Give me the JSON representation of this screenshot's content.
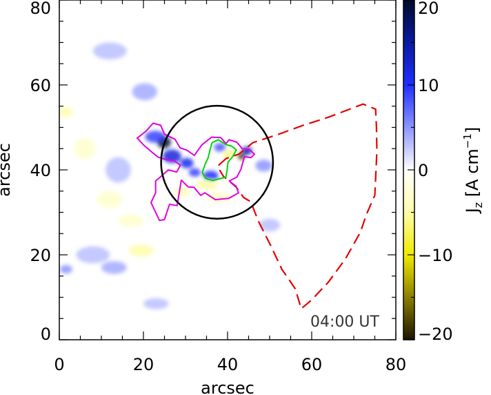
{
  "chart_data": {
    "type": "heatmap",
    "title": "",
    "xlabel": "arcsec",
    "ylabel": "arcsec",
    "xlim": [
      0,
      80
    ],
    "ylim": [
      0,
      80
    ],
    "x_ticks": [
      "0",
      "20",
      "40",
      "60",
      "80"
    ],
    "y_ticks": [
      "0",
      "20",
      "40",
      "60",
      "80"
    ],
    "annotation": "04:00 UT",
    "colorbar": {
      "label_main": "J",
      "label_sub": "z",
      "label_unit": " [A cm",
      "label_exp": "−1",
      "label_close": "]",
      "range": [
        -20,
        20
      ],
      "ticks": [
        "20",
        "10",
        "0",
        "−10",
        "−20"
      ],
      "tick_values": [
        20,
        10,
        0,
        -10,
        -20
      ],
      "colormap": [
        "#000a2a",
        "#0a1aa0",
        "#1f2fff",
        "#8c95ff",
        "#ffffff",
        "#fffda8",
        "#f0ea00",
        "#8c7f00",
        "#1c1400"
      ]
    },
    "circle": {
      "center": [
        37.5,
        41.8
      ],
      "radius": 13.3,
      "color": "#000000"
    },
    "series": [
      {
        "color": "#e000e0",
        "points": [
          [
            20.6,
            49.1
          ],
          [
            22.3,
            51.0
          ],
          [
            24.1,
            50.5
          ],
          [
            25.0,
            48.4
          ],
          [
            27.5,
            47.2
          ],
          [
            28.7,
            45.2
          ],
          [
            30.4,
            44.6
          ],
          [
            32.1,
            43.4
          ],
          [
            33.9,
            45.9
          ],
          [
            36.2,
            47.7
          ],
          [
            38.4,
            47.6
          ],
          [
            39.6,
            46.2
          ],
          [
            40.4,
            47.1
          ],
          [
            42.2,
            46.5
          ],
          [
            43.5,
            45.0
          ],
          [
            45.3,
            44.7
          ],
          [
            46.4,
            43.7
          ],
          [
            45.6,
            42.9
          ],
          [
            44.0,
            43.1
          ],
          [
            43.2,
            40.2
          ],
          [
            42.2,
            38.3
          ],
          [
            40.4,
            37.4
          ],
          [
            42.0,
            36.2
          ],
          [
            42.6,
            34.6
          ],
          [
            40.3,
            33.3
          ],
          [
            37.1,
            33.0
          ],
          [
            34.6,
            34.6
          ],
          [
            33.6,
            34.0
          ],
          [
            32.0,
            35.9
          ],
          [
            30.6,
            36.0
          ],
          [
            29.0,
            37.6
          ],
          [
            28.5,
            34.6
          ],
          [
            28.0,
            31.6
          ],
          [
            26.2,
            31.9
          ],
          [
            25.0,
            28.3
          ],
          [
            23.8,
            28.1
          ],
          [
            22.9,
            30.0
          ],
          [
            21.8,
            32.3
          ],
          [
            22.9,
            34.6
          ],
          [
            22.9,
            37.4
          ],
          [
            24.0,
            38.3
          ],
          [
            25.9,
            40.0
          ],
          [
            27.9,
            39.5
          ],
          [
            28.8,
            41.1
          ],
          [
            27.2,
            42.2
          ],
          [
            25.4,
            42.4
          ],
          [
            23.5,
            43.0
          ],
          [
            21.6,
            44.5
          ],
          [
            20.0,
            45.9
          ],
          [
            18.5,
            47.5
          ],
          [
            20.6,
            49.1
          ]
        ]
      },
      {
        "color": "#00d400",
        "points": [
          [
            36.3,
            46.4
          ],
          [
            37.8,
            47.1
          ],
          [
            39.5,
            46.0
          ],
          [
            41.0,
            45.6
          ],
          [
            42.1,
            44.7
          ],
          [
            41.2,
            43.1
          ],
          [
            40.1,
            41.8
          ],
          [
            39.9,
            40.0
          ],
          [
            39.6,
            38.3
          ],
          [
            38.1,
            37.9
          ],
          [
            36.5,
            37.5
          ],
          [
            34.8,
            38.0
          ],
          [
            34.0,
            39.4
          ],
          [
            34.6,
            41.2
          ],
          [
            35.4,
            42.9
          ],
          [
            35.8,
            44.6
          ],
          [
            36.3,
            46.4
          ]
        ]
      }
    ],
    "dashed_region": {
      "color": "#e60000",
      "points": [
        [
          38.2,
          41.4
        ],
        [
          39.7,
          42.7
        ],
        [
          42.7,
          43.7
        ],
        [
          46.0,
          46.4
        ],
        [
          52.2,
          48.4
        ],
        [
          58.0,
          50.5
        ],
        [
          64.0,
          52.4
        ],
        [
          72.2,
          55.5
        ],
        [
          75.2,
          54.3
        ],
        [
          75.4,
          50.0
        ],
        [
          75.5,
          44.5
        ],
        [
          75.3,
          40.0
        ],
        [
          75.0,
          34.0
        ],
        [
          73.0,
          29.5
        ],
        [
          71.6,
          25.4
        ],
        [
          68.0,
          19.0
        ],
        [
          63.9,
          13.5
        ],
        [
          59.9,
          9.3
        ],
        [
          57.5,
          7.3
        ],
        [
          56.1,
          12.0
        ],
        [
          52.9,
          16.6
        ],
        [
          50.2,
          22.3
        ],
        [
          47.3,
          28.0
        ],
        [
          45.5,
          32.5
        ],
        [
          43.8,
          33.5
        ],
        [
          42.0,
          36.0
        ],
        [
          39.0,
          38.5
        ],
        [
          37.6,
          40.8
        ],
        [
          38.2,
          41.4
        ]
      ]
    },
    "blobs": [
      {
        "x": 24.9,
        "y": 46.5,
        "rx": 1.6,
        "ry": 1.4,
        "value": 20
      },
      {
        "x": 26.8,
        "y": 43.2,
        "rx": 2.2,
        "ry": 1.6,
        "value": 12
      },
      {
        "x": 22.8,
        "y": 47.8,
        "rx": 2.4,
        "ry": 1.4,
        "value": 9
      },
      {
        "x": 30.3,
        "y": 41.6,
        "rx": 1.6,
        "ry": 1.2,
        "value": 11
      },
      {
        "x": 32.2,
        "y": 39.4,
        "rx": 1.4,
        "ry": 1.0,
        "value": 9
      },
      {
        "x": 38.2,
        "y": 45.3,
        "rx": 1.4,
        "ry": 1.0,
        "value": 8
      },
      {
        "x": 36.0,
        "y": 38.6,
        "rx": 1.8,
        "ry": 1.2,
        "value": 10
      },
      {
        "x": 44.6,
        "y": 44.5,
        "rx": 1.2,
        "ry": 1.0,
        "value": 14
      },
      {
        "x": 43.3,
        "y": 43.2,
        "rx": 0.9,
        "ry": 0.8,
        "value": -18
      },
      {
        "x": 40.3,
        "y": 43.8,
        "rx": 1.4,
        "ry": 1.0,
        "value": -6
      },
      {
        "x": 35.1,
        "y": 36.5,
        "rx": 2.6,
        "ry": 1.2,
        "value": -5
      },
      {
        "x": 29.2,
        "y": 34.8,
        "rx": 1.8,
        "ry": 1.3,
        "value": -4
      },
      {
        "x": 48.6,
        "y": 41.0,
        "rx": 2.0,
        "ry": 1.4,
        "value": 5
      },
      {
        "x": 20.3,
        "y": 58.4,
        "rx": 3.0,
        "ry": 2.0,
        "value": 4
      },
      {
        "x": 14.0,
        "y": 40.0,
        "rx": 3.0,
        "ry": 3.0,
        "value": 3
      },
      {
        "x": 1.5,
        "y": 53.6,
        "rx": 1.6,
        "ry": 1.2,
        "value": -5
      },
      {
        "x": 19.5,
        "y": 21.0,
        "rx": 3.0,
        "ry": 1.4,
        "value": -5
      },
      {
        "x": 12.0,
        "y": 33.0,
        "rx": 3.0,
        "ry": 2.0,
        "value": -3
      },
      {
        "x": 8.0,
        "y": 20.0,
        "rx": 4.0,
        "ry": 2.0,
        "value": 3
      },
      {
        "x": 13.0,
        "y": 17.0,
        "rx": 3.0,
        "ry": 1.5,
        "value": 4
      },
      {
        "x": 1.6,
        "y": 16.6,
        "rx": 1.5,
        "ry": 1.0,
        "value": 5
      },
      {
        "x": 23.0,
        "y": 8.5,
        "rx": 3.0,
        "ry": 1.3,
        "value": 3
      },
      {
        "x": 12.0,
        "y": 68.0,
        "rx": 4.0,
        "ry": 2.0,
        "value": 3
      },
      {
        "x": 50.0,
        "y": 27.0,
        "rx": 2.5,
        "ry": 1.5,
        "value": 3
      },
      {
        "x": 17.0,
        "y": 28.0,
        "rx": 3.0,
        "ry": 1.5,
        "value": -3
      },
      {
        "x": 38.0,
        "y": 33.5,
        "rx": 3.0,
        "ry": 1.0,
        "value": -4
      },
      {
        "x": 6.0,
        "y": 45.0,
        "rx": 2.5,
        "ry": 2.5,
        "value": -3
      }
    ]
  }
}
